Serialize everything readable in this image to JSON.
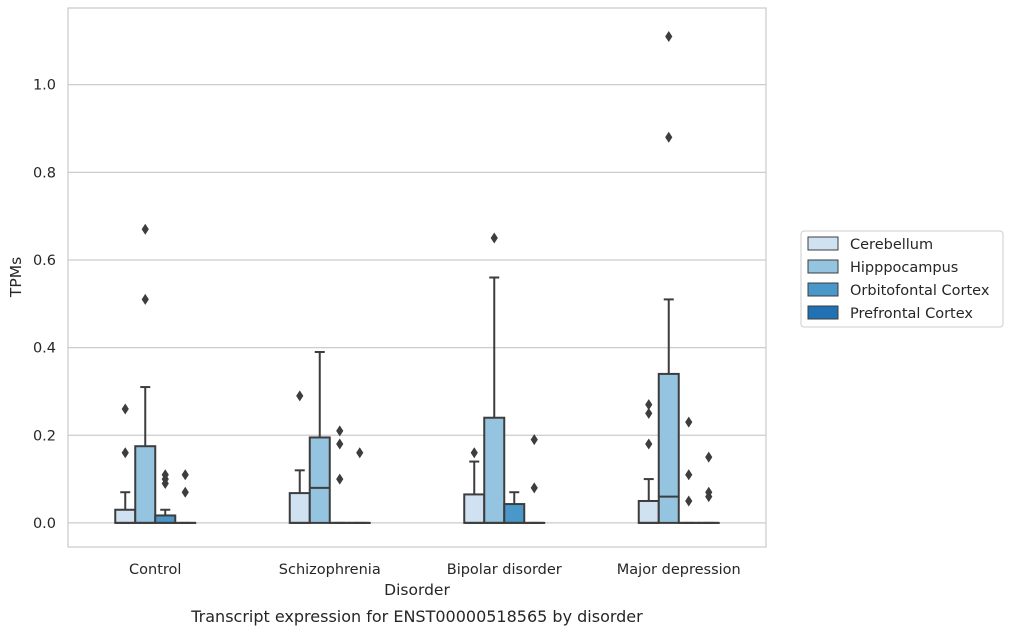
{
  "chart_data": {
    "type": "box",
    "title": "",
    "caption": "Transcript expression for ENST00000518565 by disorder",
    "xlabel": "Disorder",
    "ylabel": "TPMs",
    "ylim": [
      -0.055,
      1.175
    ],
    "yticks": [
      0.0,
      0.2,
      0.4,
      0.6,
      0.8,
      1.0
    ],
    "ytick_labels": [
      "0.0",
      "0.2",
      "0.4",
      "0.6",
      "0.8",
      "1.0"
    ],
    "grid": "horizontal",
    "legend_placement": "right",
    "categories": [
      "Control",
      "Schizophrenia",
      "Bipolar disorder",
      "Major depression"
    ],
    "series": [
      {
        "name": "Cerebellum",
        "color": "#d0e1f2",
        "boxes": [
          {
            "whislo": 0.0,
            "q1": 0.0,
            "med": 0.0,
            "q3": 0.03,
            "whishi": 0.07,
            "fliers": [
              0.16,
              0.26
            ]
          },
          {
            "whislo": 0.0,
            "q1": 0.0,
            "med": 0.0,
            "q3": 0.068,
            "whishi": 0.12,
            "fliers": [
              0.29
            ]
          },
          {
            "whislo": 0.0,
            "q1": 0.0,
            "med": 0.0,
            "q3": 0.065,
            "whishi": 0.14,
            "fliers": [
              0.16
            ]
          },
          {
            "whislo": 0.0,
            "q1": 0.0,
            "med": 0.0,
            "q3": 0.05,
            "whishi": 0.1,
            "fliers": [
              0.18,
              0.25,
              0.27
            ]
          }
        ]
      },
      {
        "name": "Hipppocampus",
        "color": "#94c4df",
        "boxes": [
          {
            "whislo": 0.0,
            "q1": 0.0,
            "med": 0.0,
            "q3": 0.175,
            "whishi": 0.31,
            "fliers": [
              0.51,
              0.67
            ]
          },
          {
            "whislo": 0.0,
            "q1": 0.0,
            "med": 0.08,
            "q3": 0.195,
            "whishi": 0.39,
            "fliers": []
          },
          {
            "whislo": 0.0,
            "q1": 0.0,
            "med": 0.0,
            "q3": 0.24,
            "whishi": 0.56,
            "fliers": [
              0.65
            ]
          },
          {
            "whislo": 0.0,
            "q1": 0.0,
            "med": 0.06,
            "q3": 0.34,
            "whishi": 0.51,
            "fliers": [
              0.88,
              1.11
            ]
          }
        ]
      },
      {
        "name": "Orbitofontal Cortex",
        "color": "#4a98c9",
        "boxes": [
          {
            "whislo": 0.0,
            "q1": 0.0,
            "med": 0.0,
            "q3": 0.017,
            "whishi": 0.03,
            "fliers": [
              0.09,
              0.1,
              0.11
            ]
          },
          {
            "whislo": 0.0,
            "q1": 0.0,
            "med": 0.0,
            "q3": 0.0,
            "whishi": 0.0,
            "fliers": [
              0.1,
              0.18,
              0.21
            ]
          },
          {
            "whislo": 0.0,
            "q1": 0.0,
            "med": 0.0,
            "q3": 0.043,
            "whishi": 0.07,
            "fliers": []
          },
          {
            "whislo": 0.0,
            "q1": 0.0,
            "med": 0.0,
            "q3": 0.0,
            "whishi": 0.0,
            "fliers": [
              0.05,
              0.11,
              0.23
            ]
          }
        ]
      },
      {
        "name": "Prefrontal Cortex",
        "color": "#2171b5",
        "boxes": [
          {
            "whislo": 0.0,
            "q1": 0.0,
            "med": 0.0,
            "q3": 0.0,
            "whishi": 0.0,
            "fliers": [
              0.07,
              0.11
            ]
          },
          {
            "whislo": 0.0,
            "q1": 0.0,
            "med": 0.0,
            "q3": 0.0,
            "whishi": 0.0,
            "fliers": [
              0.16
            ]
          },
          {
            "whislo": 0.0,
            "q1": 0.0,
            "med": 0.0,
            "q3": 0.0,
            "whishi": 0.0,
            "fliers": [
              0.08,
              0.19
            ]
          },
          {
            "whislo": 0.0,
            "q1": 0.0,
            "med": 0.0,
            "q3": 0.0,
            "whishi": 0.0,
            "fliers": [
              0.06,
              0.07,
              0.15
            ]
          }
        ]
      }
    ]
  }
}
